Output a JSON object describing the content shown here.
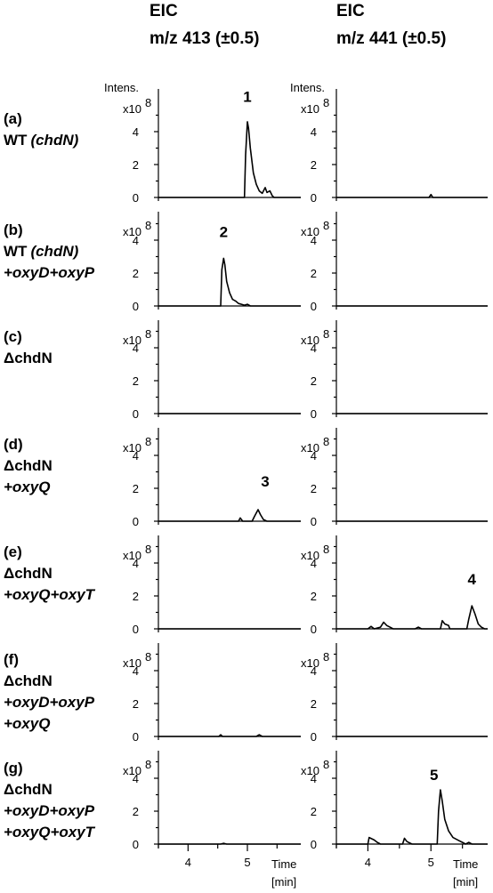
{
  "columns": [
    {
      "line1": "EIC",
      "line2": "m/z 413 (±0.5)"
    },
    {
      "line1": "EIC",
      "line2": "m/z 441 (±0.5)"
    }
  ],
  "y_axis_label": "Intens.",
  "y_scale_label": "x10",
  "y_scale_exp": "8",
  "x_axis_label": {
    "line1": "Time",
    "line2": "[min]"
  },
  "rows": [
    {
      "id": "(a)",
      "lines": [
        {
          "t": "WT ",
          "i": false
        },
        {
          "t": "(chdN)",
          "i": true
        }
      ]
    },
    {
      "id": "(b)",
      "lines": [
        {
          "t": "WT ",
          "i": false
        },
        {
          "t": "(chdN)",
          "i": true
        },
        {
          "t": "+oxyD+oxyP",
          "i": true
        }
      ]
    },
    {
      "id": "(c)",
      "lines": [
        {
          "t": "ΔchdN",
          "i": false
        }
      ]
    },
    {
      "id": "(d)",
      "lines": [
        {
          "t": "ΔchdN",
          "i": false
        },
        {
          "t": "+oxyQ",
          "i": true
        }
      ]
    },
    {
      "id": "(e)",
      "lines": [
        {
          "t": "ΔchdN",
          "i": false
        },
        {
          "t": "+oxyQ+oxyT",
          "i": true
        }
      ]
    },
    {
      "id": "(f)",
      "lines": [
        {
          "t": "ΔchdN",
          "i": false
        },
        {
          "t": "+oxyD+oxyP",
          "i": true
        },
        {
          "t": "+oxyQ",
          "i": true
        }
      ]
    },
    {
      "id": "(g)",
      "lines": [
        {
          "t": "ΔchdN",
          "i": false
        },
        {
          "t": "+oxyD+oxyP",
          "i": true
        },
        {
          "t": "+oxyQ+oxyT",
          "i": true
        }
      ]
    }
  ],
  "chart_data": {
    "type": "line",
    "x_range": [
      3.5,
      5.9
    ],
    "x_ticks": [
      4,
      5
    ],
    "y_range": [
      0,
      5.5
    ],
    "y_ticks": [
      0,
      2,
      4
    ],
    "y_unit_scale": "x10^8",
    "panels": [
      {
        "row": "(a)",
        "col": 0,
        "peak_label": "1",
        "peak_label_at": [
          5.0,
          5.8
        ],
        "points": [
          [
            3.5,
            0
          ],
          [
            4.95,
            0
          ],
          [
            4.97,
            2.6
          ],
          [
            5.0,
            4.6
          ],
          [
            5.02,
            4.2
          ],
          [
            5.05,
            3.0
          ],
          [
            5.1,
            1.5
          ],
          [
            5.15,
            0.8
          ],
          [
            5.2,
            0.4
          ],
          [
            5.25,
            0.25
          ],
          [
            5.3,
            0.6
          ],
          [
            5.33,
            0.3
          ],
          [
            5.38,
            0.4
          ],
          [
            5.42,
            0.1
          ],
          [
            5.45,
            0
          ],
          [
            5.9,
            0
          ]
        ]
      },
      {
        "row": "(a)",
        "col": 1,
        "peak_label": "",
        "points": [
          [
            3.5,
            0
          ],
          [
            4.97,
            0
          ],
          [
            5.0,
            0.18
          ],
          [
            5.03,
            0
          ],
          [
            5.9,
            0
          ]
        ]
      },
      {
        "row": "(b)",
        "col": 0,
        "peak_label": "2",
        "peak_label_at": [
          4.6,
          4.2
        ],
        "points": [
          [
            3.5,
            0
          ],
          [
            4.55,
            0
          ],
          [
            4.57,
            2.2
          ],
          [
            4.6,
            2.9
          ],
          [
            4.62,
            2.5
          ],
          [
            4.65,
            1.5
          ],
          [
            4.7,
            0.8
          ],
          [
            4.75,
            0.4
          ],
          [
            4.8,
            0.3
          ],
          [
            4.85,
            0.15
          ],
          [
            4.9,
            0.1
          ],
          [
            4.95,
            0.05
          ],
          [
            5.0,
            0.1
          ],
          [
            5.05,
            0
          ],
          [
            5.9,
            0
          ]
        ]
      },
      {
        "row": "(b)",
        "col": 1,
        "peak_label": "",
        "points": [
          [
            3.5,
            0
          ],
          [
            5.9,
            0
          ]
        ]
      },
      {
        "row": "(c)",
        "col": 0,
        "peak_label": "",
        "points": [
          [
            3.5,
            0
          ],
          [
            5.9,
            0
          ]
        ]
      },
      {
        "row": "(c)",
        "col": 1,
        "peak_label": "",
        "points": [
          [
            3.5,
            0
          ],
          [
            5.9,
            0
          ]
        ]
      },
      {
        "row": "(d)",
        "col": 0,
        "peak_label": "3",
        "peak_label_at": [
          5.3,
          2.1
        ],
        "points": [
          [
            3.5,
            0
          ],
          [
            4.85,
            0
          ],
          [
            4.88,
            0.2
          ],
          [
            4.92,
            0
          ],
          [
            5.08,
            0
          ],
          [
            5.12,
            0.3
          ],
          [
            5.18,
            0.7
          ],
          [
            5.22,
            0.4
          ],
          [
            5.27,
            0.1
          ],
          [
            5.33,
            0
          ],
          [
            5.9,
            0
          ]
        ]
      },
      {
        "row": "(d)",
        "col": 1,
        "peak_label": "",
        "points": [
          [
            3.5,
            0
          ],
          [
            5.9,
            0
          ]
        ]
      },
      {
        "row": "(e)",
        "col": 0,
        "peak_label": "",
        "points": [
          [
            3.5,
            0
          ],
          [
            5.9,
            0
          ]
        ]
      },
      {
        "row": "(e)",
        "col": 1,
        "peak_label": "4",
        "peak_label_at": [
          5.65,
          2.7
        ],
        "points": [
          [
            3.5,
            0
          ],
          [
            4.0,
            0
          ],
          [
            4.05,
            0.15
          ],
          [
            4.1,
            0
          ],
          [
            4.2,
            0.1
          ],
          [
            4.25,
            0.4
          ],
          [
            4.3,
            0.2
          ],
          [
            4.35,
            0.1
          ],
          [
            4.4,
            0
          ],
          [
            4.75,
            0
          ],
          [
            4.8,
            0.1
          ],
          [
            4.85,
            0
          ],
          [
            5.15,
            0
          ],
          [
            5.18,
            0.5
          ],
          [
            5.22,
            0.3
          ],
          [
            5.28,
            0.2
          ],
          [
            5.3,
            0
          ],
          [
            5.57,
            0
          ],
          [
            5.6,
            0.6
          ],
          [
            5.65,
            1.4
          ],
          [
            5.7,
            0.9
          ],
          [
            5.75,
            0.3
          ],
          [
            5.8,
            0.1
          ],
          [
            5.85,
            0
          ],
          [
            5.9,
            0
          ]
        ]
      },
      {
        "row": "(f)",
        "col": 0,
        "peak_label": "",
        "points": [
          [
            3.5,
            0
          ],
          [
            4.52,
            0
          ],
          [
            4.55,
            0.1
          ],
          [
            4.58,
            0
          ],
          [
            5.15,
            0
          ],
          [
            5.2,
            0.1
          ],
          [
            5.25,
            0
          ],
          [
            5.9,
            0
          ]
        ]
      },
      {
        "row": "(f)",
        "col": 1,
        "peak_label": "",
        "points": [
          [
            3.5,
            0
          ],
          [
            5.9,
            0
          ]
        ]
      },
      {
        "row": "(g)",
        "col": 0,
        "peak_label": "",
        "points": [
          [
            3.5,
            0
          ],
          [
            4.55,
            0
          ],
          [
            4.6,
            0.05
          ],
          [
            4.65,
            0
          ],
          [
            5.9,
            0
          ]
        ]
      },
      {
        "row": "(g)",
        "col": 1,
        "peak_label": "5",
        "peak_label_at": [
          5.05,
          3.9
        ],
        "points": [
          [
            3.5,
            0
          ],
          [
            4.0,
            0
          ],
          [
            4.02,
            0.4
          ],
          [
            4.1,
            0.25
          ],
          [
            4.15,
            0.1
          ],
          [
            4.2,
            0
          ],
          [
            4.55,
            0
          ],
          [
            4.58,
            0.35
          ],
          [
            4.62,
            0.15
          ],
          [
            4.7,
            0
          ],
          [
            5.1,
            0
          ],
          [
            5.12,
            2.0
          ],
          [
            5.15,
            3.3
          ],
          [
            5.18,
            2.6
          ],
          [
            5.22,
            1.5
          ],
          [
            5.28,
            0.8
          ],
          [
            5.35,
            0.4
          ],
          [
            5.45,
            0.2
          ],
          [
            5.5,
            0.1
          ],
          [
            5.55,
            0
          ],
          [
            5.6,
            0.1
          ],
          [
            5.65,
            0
          ],
          [
            5.9,
            0
          ]
        ]
      }
    ]
  }
}
